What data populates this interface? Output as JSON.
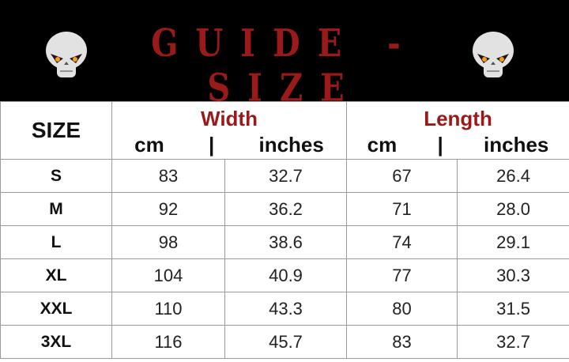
{
  "banner": {
    "title": "GUIDE - SIZE",
    "icon": "skull-icon"
  },
  "table": {
    "size_header": "SIZE",
    "groups": [
      {
        "label": "Width",
        "unit_cm": "cm",
        "separator": "|",
        "unit_in": "inches"
      },
      {
        "label": "Length",
        "unit_cm": "cm",
        "separator": "|",
        "unit_in": "inches"
      }
    ],
    "rows": [
      {
        "size": "S",
        "width_cm": "83",
        "width_in": "32.7",
        "length_cm": "67",
        "length_in": "26.4"
      },
      {
        "size": "M",
        "width_cm": "92",
        "width_in": "36.2",
        "length_cm": "71",
        "length_in": "28.0"
      },
      {
        "size": "L",
        "width_cm": "98",
        "width_in": "38.6",
        "length_cm": "74",
        "length_in": "29.1"
      },
      {
        "size": "XL",
        "width_cm": "104",
        "width_in": "40.9",
        "length_cm": "77",
        "length_in": "30.3"
      },
      {
        "size": "XXL",
        "width_cm": "110",
        "width_in": "43.3",
        "length_cm": "80",
        "length_in": "31.5"
      },
      {
        "size": "3XL",
        "width_cm": "116",
        "width_in": "45.7",
        "length_cm": "83",
        "length_in": "32.7"
      }
    ]
  },
  "colors": {
    "accent": "#9a1a1a",
    "banner_bg": "#000000"
  }
}
